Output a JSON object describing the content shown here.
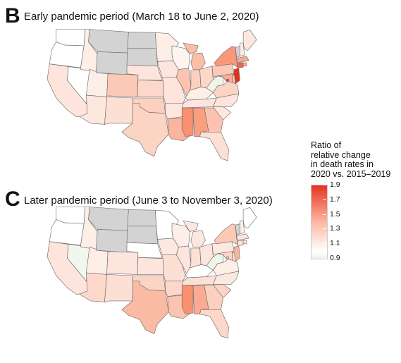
{
  "panels": [
    {
      "letter": "B",
      "title": "Early pandemic period (March 18 to June 2, 2020)",
      "states": {
        "WA": "#ffffff",
        "OR": "#ffffff",
        "CA": "#fde4dc",
        "NV": "#ffffff",
        "ID": "#fdeee8",
        "MT": "#d3d3d3",
        "WY": "#d3d3d3",
        "UT": "#fdeee8",
        "AZ": "#fde8e0",
        "CO": "#fcc9b7",
        "NM": "#fde0d4",
        "ND": "#d3d3d3",
        "SD": "#d3d3d3",
        "NE": "#fde4dc",
        "KS": "#fdd8ca",
        "OK": "#fcd0bf",
        "TX": "#fcd4c4",
        "MN": "#fdeee8",
        "IA": "#fde4dc",
        "MO": "#fde4dc",
        "AR": "#fde8e0",
        "LA": "#fbb49e",
        "WI": "#fff4f0",
        "IL": "#fcc4b0",
        "MI": "#fcbca6",
        "IN": "#fcd0bf",
        "OH": "#fdd8ca",
        "KY": "#fdeee8",
        "TN": "#fde4dc",
        "MS": "#f9906f",
        "AL": "#fa9e80",
        "GA": "#fcc4b0",
        "FL": "#fde0d4",
        "SC": "#fde8e0",
        "NC": "#fde4dc",
        "VA": "#fcd4c4",
        "WV": "#f0f5ea",
        "PA": "#fcc9b7",
        "NY": "#f99879",
        "VT": "#d3d3d3",
        "NH": "#fdeee8",
        "ME": "#fde8e0",
        "MA": "#fba78d",
        "CT": "#f4654a",
        "RI": "#fbb49e",
        "NJ": "#e0321f",
        "DE": "#fcc4b0",
        "MD": "#fbab92",
        "DC": "#e8432c"
      }
    },
    {
      "letter": "C",
      "title": "Later pandemic period (June 3 to November 3, 2020)",
      "states": {
        "WA": "#ffffff",
        "OR": "#ffffff",
        "CA": "#fde4dc",
        "NV": "#f2f7ee",
        "ID": "#fdeee8",
        "MT": "#d3d3d3",
        "WY": "#d3d3d3",
        "UT": "#fdeee8",
        "AZ": "#fdd8ca",
        "CO": "#fde4dc",
        "NM": "#fde0d4",
        "ND": "#d3d3d3",
        "SD": "#d3d3d3",
        "NE": "#ffffff",
        "KS": "#fde4dc",
        "OK": "#fcd4c4",
        "TX": "#fbbaa3",
        "MN": "#ffffff",
        "IA": "#fde8e0",
        "MO": "#fde0d4",
        "AR": "#fdd8ca",
        "LA": "#fcc4b0",
        "WI": "#fdeee8",
        "IL": "#fde4dc",
        "MI": "#fde8e0",
        "IN": "#fde0d4",
        "OH": "#fde4dc",
        "KY": "#ffffff",
        "TN": "#fde0d4",
        "MS": "#f9906f",
        "AL": "#fbab92",
        "GA": "#fcd0bf",
        "FL": "#fdd8ca",
        "SC": "#fcd4c4",
        "NC": "#fde8e0",
        "VA": "#fdeee8",
        "WV": "#f0f5ea",
        "PA": "#fde8e0",
        "NY": "#fcc9b7",
        "VT": "#d3d3d3",
        "NH": "#fdeee8",
        "ME": "#ffffff",
        "MA": "#fde4dc",
        "CT": "#fde0d4",
        "RI": "#fde8e0",
        "NJ": "#fbb49e",
        "DE": "#fde0d4",
        "MD": "#fcd4c4",
        "DC": "#fcc4b0"
      }
    }
  ],
  "legend": {
    "title_lines": [
      "Ratio of",
      "relative change",
      "in death rates in",
      "2020 vs. 2015–2019"
    ],
    "ticks": [
      "1.9",
      "1.7",
      "1.5",
      "1.3",
      "1.1",
      "0.9"
    ],
    "tick_values": [
      1.9,
      1.7,
      1.5,
      1.3,
      1.1,
      0.9
    ],
    "range": [
      0.9,
      1.9
    ],
    "colors": {
      "high": "#e8321f",
      "mid": "#fcb8a2",
      "one": "#ffffff",
      "low": "#edf4e7"
    },
    "missing_color": "#d3d3d3"
  }
}
